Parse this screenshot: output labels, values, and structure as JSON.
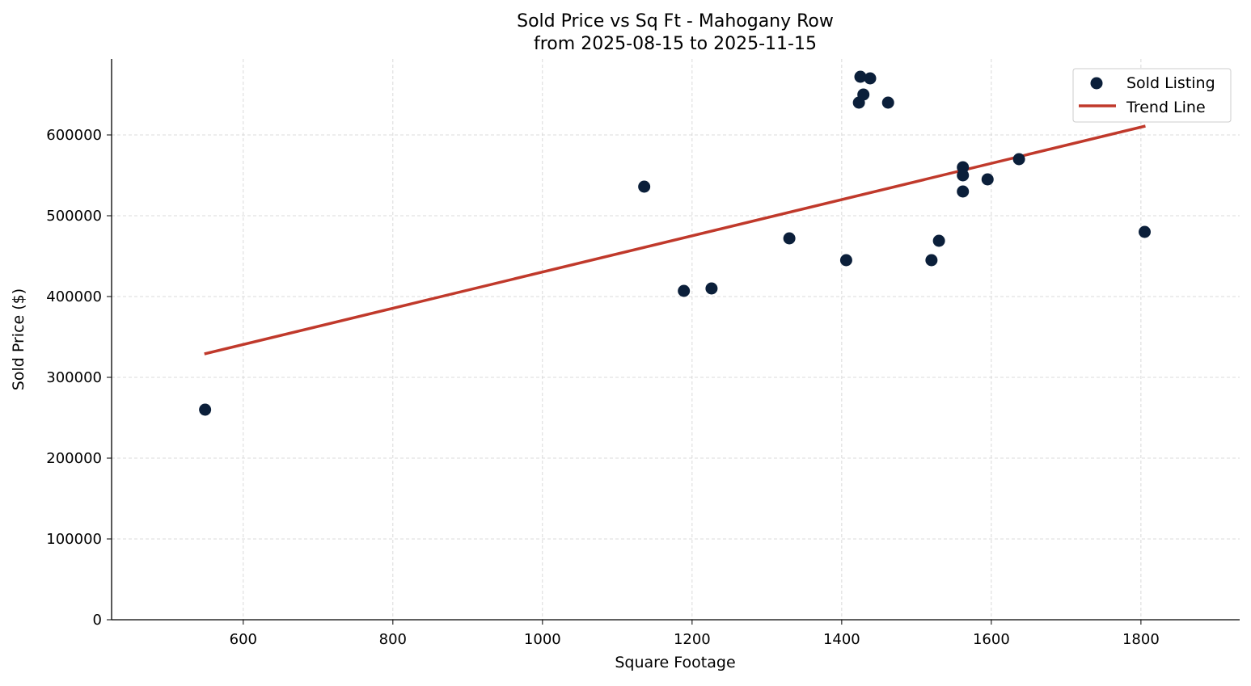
{
  "chart_data": {
    "type": "scatter",
    "title": "Sold Price vs Sq Ft - Mahogany Row",
    "subtitle": "from 2025-08-15 to 2025-11-15",
    "xlabel": "Square Footage",
    "ylabel": "Sold Price ($)",
    "xlim": [
      424,
      1932
    ],
    "ylim": [
      0,
      694000
    ],
    "xticks": [
      600,
      800,
      1000,
      1200,
      1400,
      1600,
      1800
    ],
    "yticks": [
      0,
      100000,
      200000,
      300000,
      400000,
      500000,
      600000
    ],
    "grid": true,
    "legend_position": "top-right",
    "colors": {
      "points": "#0b1f3a",
      "trend": "#c0392b"
    },
    "series": [
      {
        "name": "Sold Listing",
        "type": "scatter",
        "x": [
          549,
          1136,
          1189,
          1226,
          1330,
          1406,
          1423,
          1425,
          1429,
          1438,
          1462,
          1520,
          1530,
          1562,
          1562,
          1562,
          1595,
          1637,
          1805
        ],
        "y": [
          260000,
          536000,
          407000,
          410000,
          472000,
          445000,
          640000,
          672000,
          650000,
          670000,
          640000,
          445000,
          469000,
          560000,
          550000,
          530000,
          545000,
          570000,
          480000
        ]
      },
      {
        "name": "Trend Line",
        "type": "line",
        "x": [
          548,
          1806
        ],
        "y": [
          329000,
          611000
        ]
      }
    ]
  }
}
